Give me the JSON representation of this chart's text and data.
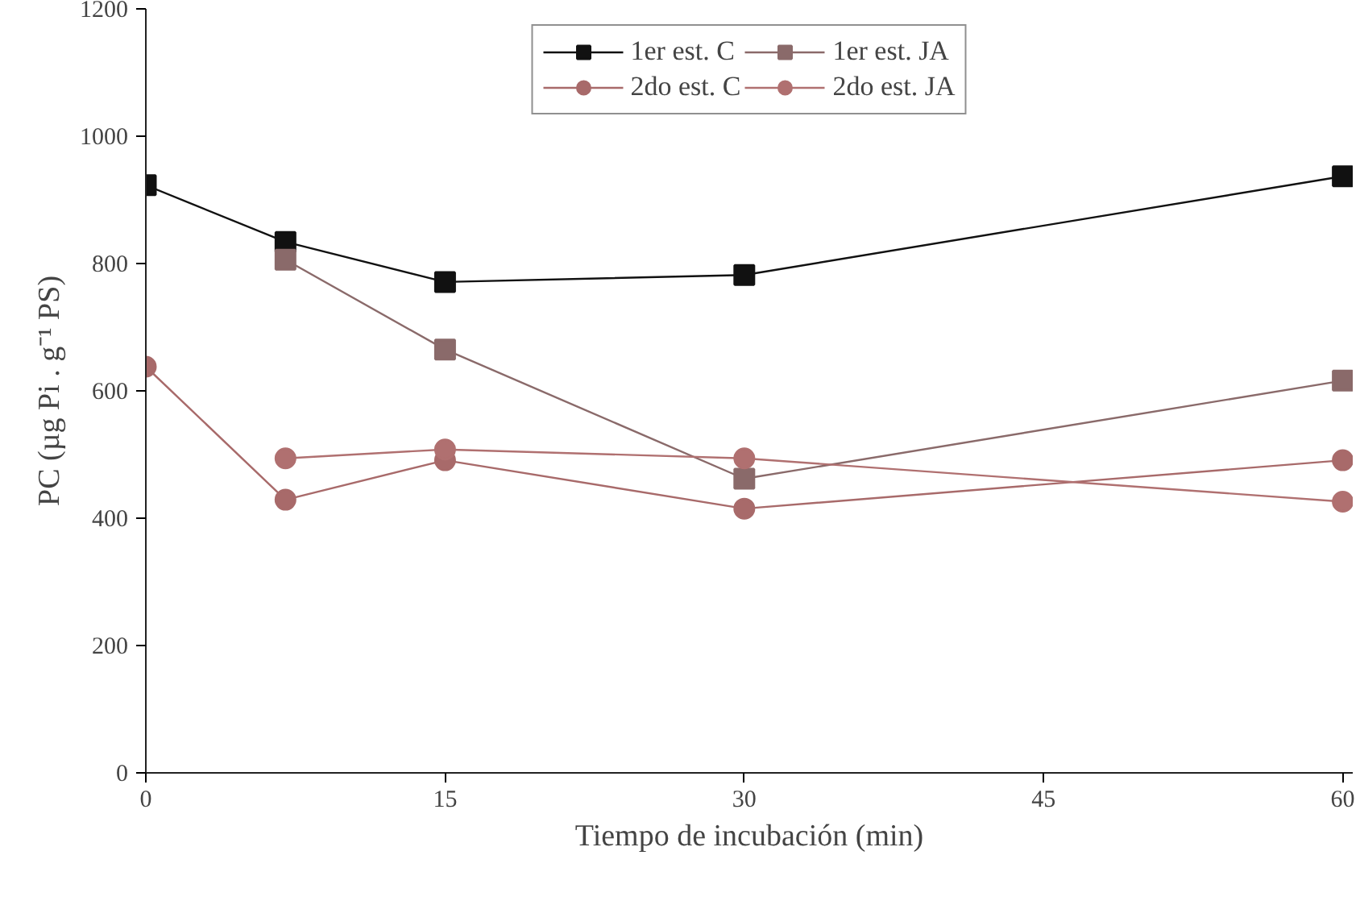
{
  "chart_data": {
    "type": "line",
    "xlabel": "Tiempo de incubación (min)",
    "ylabel": "PC (µg Pi . g⁻¹ PS)",
    "x": [
      0,
      7,
      15,
      30,
      60
    ],
    "xlim": [
      0,
      60.5
    ],
    "ylim": [
      0,
      1200
    ],
    "xticks": [
      0,
      15,
      30,
      45,
      60
    ],
    "yticks": [
      0,
      200,
      400,
      600,
      800,
      1000,
      1200
    ],
    "grid": false,
    "legend": "top",
    "series": [
      {
        "name": "1er est. C",
        "color": "#111111",
        "marker": "square",
        "values": [
          923,
          834,
          771,
          782,
          937
        ]
      },
      {
        "name": "2do est. C",
        "color": "#a86a6a",
        "marker": "circle",
        "values": [
          638,
          429,
          491,
          415,
          491
        ]
      },
      {
        "name": "1er est. JA",
        "color": "#8a6a6a",
        "marker": "square",
        "values": [
          null,
          806,
          665,
          462,
          616
        ]
      },
      {
        "name": "2do est. JA",
        "color": "#b07070",
        "marker": "circle",
        "values": [
          null,
          494,
          508,
          494,
          426
        ]
      }
    ]
  }
}
